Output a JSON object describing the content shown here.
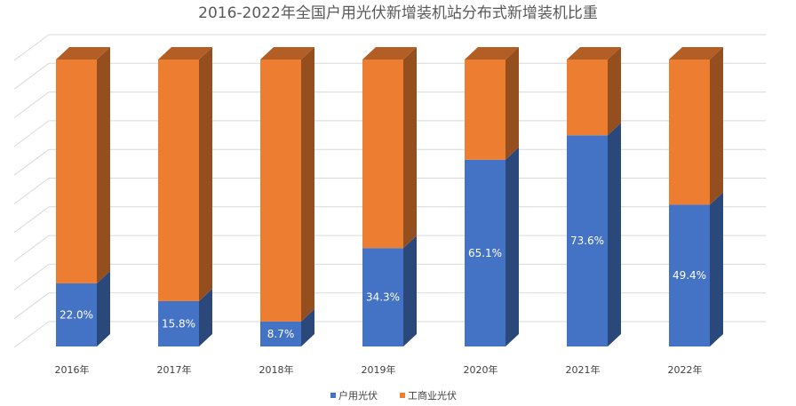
{
  "chart_data": {
    "type": "bar",
    "stacked": true,
    "percent": true,
    "three_d": true,
    "title": "2016-2022年全国户用光伏新增装机站分布式新增装机比重",
    "categories": [
      "2016年",
      "2017年",
      "2018年",
      "2019年",
      "2020年",
      "2021年",
      "2022年"
    ],
    "series": [
      {
        "name": "户用光伏",
        "values": [
          22.0,
          15.8,
          8.7,
          34.3,
          65.1,
          73.6,
          49.4
        ],
        "labels": [
          "22.0%",
          "15.8%",
          "8.7%",
          "34.3%",
          "65.1%",
          "73.6%",
          "49.4%"
        ],
        "color": "#4472C4"
      },
      {
        "name": "工商业光伏",
        "values": [
          78.0,
          84.2,
          91.3,
          65.7,
          34.9,
          26.4,
          50.6
        ],
        "color": "#ED7D31"
      }
    ],
    "ylim": [
      0,
      100
    ],
    "grid": true,
    "legend": "bottom"
  }
}
